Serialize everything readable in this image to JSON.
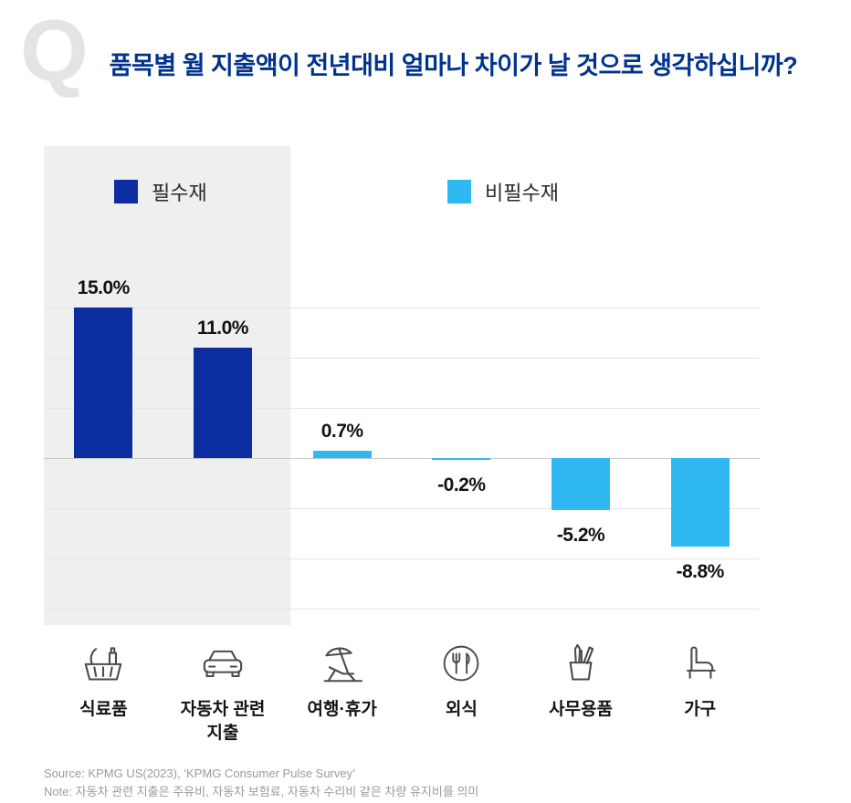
{
  "header": {
    "q_mark": "Q",
    "title": "품목별 월 지출액이 전년대비 얼마나 차이가 날 것으로 생각하십니까?"
  },
  "chart_data": {
    "type": "bar",
    "title": "품목별 월 지출액이 전년대비 얼마나 차이가 날 것으로 생각하십니까?",
    "categories": [
      "식료품",
      "자동차 관련 지출",
      "여행·휴가",
      "외식",
      "사무용품",
      "가구"
    ],
    "values": [
      15.0,
      11.0,
      0.7,
      -0.2,
      -5.2,
      -8.8
    ],
    "value_labels": [
      "15.0%",
      "11.0%",
      "0.7%",
      "-0.2%",
      "-5.2%",
      "-8.8%"
    ],
    "unit": "%",
    "point_series": [
      "필수재",
      "필수재",
      "비필수재",
      "비필수재",
      "비필수재",
      "비필수재"
    ],
    "series": [
      {
        "name": "필수재",
        "color": "#0d2ea0"
      },
      {
        "name": "비필수재",
        "color": "#2fb8f2"
      }
    ],
    "xlabel": "",
    "ylabel": "",
    "ylim": [
      -15,
      17.5
    ],
    "gridlines_pct": [
      15,
      10,
      5,
      0,
      -5,
      -10,
      -15
    ],
    "grid": true,
    "legend_position": "top",
    "highlight_panel": "필수재 영역(식료품, 자동차 관련 지출)에 회색 배경"
  },
  "icons": [
    "grocery-basket-icon",
    "car-icon",
    "beach-vacation-icon",
    "dining-icon",
    "office-supplies-icon",
    "furniture-icon"
  ],
  "footer": {
    "source": "Source: KPMG US(2023), ‘KPMG Consumer Pulse Survey’",
    "note": "Note: 자동차 관련 지출은 주유비, 자동차 보험료, 자동차 수리비 같은 차량 유지비를 의미"
  }
}
